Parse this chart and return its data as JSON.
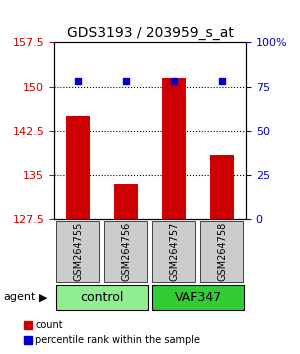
{
  "title": "GDS3193 / 203959_s_at",
  "samples": [
    "GSM264755",
    "GSM264756",
    "GSM264757",
    "GSM264758"
  ],
  "counts": [
    145.0,
    133.5,
    151.5,
    138.5
  ],
  "percentile_ranks": [
    78,
    78,
    78,
    78
  ],
  "ylim_left": [
    127.5,
    157.5
  ],
  "yticks_left": [
    127.5,
    135,
    142.5,
    150,
    157.5
  ],
  "yticks_right_vals": [
    0,
    25,
    50,
    75,
    100
  ],
  "yticks_right_labels": [
    "0",
    "25",
    "50",
    "75",
    "100%"
  ],
  "groups": [
    {
      "label": "control",
      "indices": [
        0,
        1
      ],
      "color": "#90EE90"
    },
    {
      "label": "VAF347",
      "indices": [
        2,
        3
      ],
      "color": "#32CD32"
    }
  ],
  "bar_color": "#CC0000",
  "dot_color": "#0000CC",
  "bar_width": 0.5,
  "left_tick_color": "#CC0000",
  "right_tick_color": "#0000CC",
  "agent_label": "agent",
  "legend_count_label": "count",
  "legend_pct_label": "percentile rank within the sample"
}
